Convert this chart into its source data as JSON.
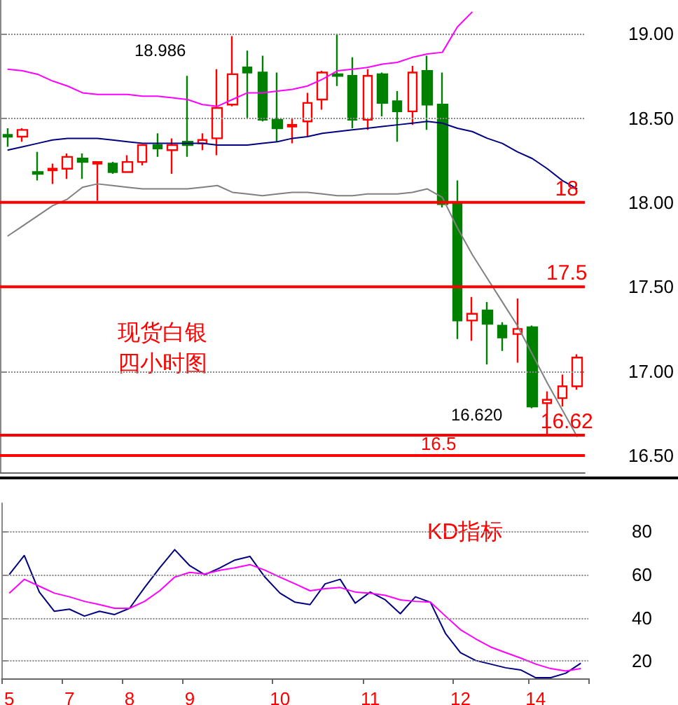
{
  "chart_data": [
    {
      "type": "candlestick",
      "categories": [
        "5",
        null,
        null,
        null,
        "7",
        null,
        null,
        null,
        "8",
        null,
        null,
        null,
        "9",
        null,
        null,
        null,
        null,
        null,
        "10",
        null,
        null,
        null,
        null,
        null,
        "11",
        null,
        null,
        null,
        null,
        null,
        "12",
        null,
        null,
        null,
        null,
        "14",
        null,
        null,
        null
      ],
      "ohlc": [
        [
          18.4,
          18.44,
          18.33,
          18.39
        ],
        [
          18.39,
          18.44,
          18.36,
          18.43
        ],
        [
          18.18,
          18.3,
          18.13,
          18.17
        ],
        [
          18.19,
          18.23,
          18.11,
          18.2
        ],
        [
          18.2,
          18.29,
          18.14,
          18.27
        ],
        [
          18.26,
          18.29,
          18.14,
          18.24
        ],
        [
          18.23,
          18.24,
          18.01,
          18.24
        ],
        [
          18.23,
          18.24,
          18.17,
          18.18
        ],
        [
          18.18,
          18.28,
          18.18,
          18.24
        ],
        [
          18.24,
          18.34,
          18.22,
          18.34
        ],
        [
          18.34,
          18.41,
          18.27,
          18.32
        ],
        [
          18.31,
          18.38,
          18.17,
          18.34
        ],
        [
          18.36,
          18.75,
          18.27,
          18.34
        ],
        [
          18.35,
          18.41,
          18.31,
          18.37
        ],
        [
          18.38,
          18.79,
          18.28,
          18.56
        ],
        [
          18.58,
          18.986,
          18.57,
          18.76
        ],
        [
          18.8,
          18.9,
          18.5,
          18.77
        ],
        [
          18.77,
          18.87,
          18.48,
          18.49
        ],
        [
          18.49,
          18.77,
          18.36,
          18.44
        ],
        [
          18.45,
          18.5,
          18.35,
          18.46
        ],
        [
          18.48,
          18.65,
          18.39,
          18.59
        ],
        [
          18.61,
          18.78,
          18.55,
          18.77
        ],
        [
          18.76,
          19.0,
          18.69,
          18.75
        ],
        [
          18.75,
          18.86,
          18.44,
          18.49
        ],
        [
          18.49,
          18.79,
          18.43,
          18.75
        ],
        [
          18.76,
          18.77,
          18.51,
          18.59
        ],
        [
          18.6,
          18.66,
          18.36,
          18.54
        ],
        [
          18.54,
          18.81,
          18.46,
          18.77
        ],
        [
          18.78,
          18.87,
          18.43,
          18.58
        ],
        [
          18.58,
          18.77,
          17.97,
          17.99
        ],
        [
          17.99,
          18.13,
          17.19,
          17.3
        ],
        [
          17.3,
          17.44,
          17.18,
          17.34
        ],
        [
          17.36,
          17.41,
          17.04,
          17.28
        ],
        [
          17.27,
          17.29,
          17.12,
          17.2
        ],
        [
          17.22,
          17.43,
          17.05,
          17.25
        ],
        [
          17.26,
          17.27,
          16.78,
          16.79
        ],
        [
          16.81,
          16.88,
          16.62,
          16.83
        ],
        [
          16.84,
          16.98,
          16.79,
          16.91
        ],
        [
          16.91,
          17.1,
          16.89,
          17.08
        ]
      ],
      "colors": [
        "#008000",
        "#ff0000",
        "#008000",
        "#ff0000",
        "#ff0000",
        "#008000",
        "#ff0000",
        "#008000",
        "#ff0000",
        "#ff0000",
        "#008000",
        "#ff0000",
        "#008000",
        "#ff0000",
        "#ff0000",
        "#ff0000",
        "#008000",
        "#008000",
        "#008000",
        "#ff0000",
        "#ff0000",
        "#ff0000",
        "#008000",
        "#008000",
        "#ff0000",
        "#008000",
        "#008000",
        "#ff0000",
        "#008000",
        "#008000",
        "#008000",
        "#ff0000",
        "#008000",
        "#008000",
        "#ff0000",
        "#008000",
        "#ff0000",
        "#ff0000",
        "#ff0000"
      ],
      "series": [
        {
          "type": "line",
          "color": "#ff00ff",
          "values": [
            18.79,
            18.78,
            18.76,
            18.72,
            18.69,
            18.65,
            18.64,
            18.64,
            18.64,
            18.63,
            18.63,
            18.62,
            18.61,
            18.58,
            18.57,
            18.61,
            18.65,
            18.65,
            18.66,
            18.67,
            18.69,
            18.73,
            18.78,
            18.79,
            18.8,
            18.82,
            18.83,
            18.86,
            18.88,
            18.89,
            19.04,
            19.13,
            null,
            null,
            null,
            null,
            null,
            null,
            null
          ]
        },
        {
          "type": "line",
          "color": "#000080",
          "values": [
            18.31,
            18.33,
            18.35,
            18.37,
            18.38,
            18.38,
            18.38,
            18.37,
            18.36,
            18.35,
            18.35,
            18.35,
            18.35,
            18.35,
            18.34,
            18.34,
            18.34,
            18.35,
            18.36,
            18.38,
            18.39,
            18.41,
            18.42,
            18.43,
            18.44,
            18.45,
            18.46,
            18.47,
            18.48,
            18.47,
            18.44,
            18.42,
            18.38,
            18.35,
            18.3,
            18.26,
            18.2,
            18.13,
            18.08
          ]
        },
        {
          "type": "line",
          "color": "#808080",
          "values": [
            17.8,
            17.86,
            17.92,
            17.98,
            18.02,
            18.09,
            18.11,
            18.1,
            18.09,
            18.08,
            18.08,
            18.08,
            18.08,
            18.09,
            18.1,
            18.06,
            18.05,
            18.04,
            18.05,
            18.06,
            18.06,
            18.05,
            18.04,
            18.04,
            18.05,
            18.05,
            18.05,
            18.06,
            18.08,
            18.03,
            17.85,
            17.69,
            17.55,
            17.41,
            17.27,
            17.1,
            16.93,
            16.77,
            16.61
          ]
        }
      ],
      "ylim": [
        16.4,
        19.2
      ],
      "yticks": [
        {
          "value": 16.5,
          "label": "16.50"
        },
        {
          "value": 17,
          "label": "17.00"
        },
        {
          "value": 17.5,
          "label": "17.50"
        },
        {
          "value": 18,
          "label": "18.00"
        },
        {
          "value": 18.5,
          "label": "18.50"
        },
        {
          "value": 19,
          "label": "19.00"
        }
      ],
      "ref_lines": [
        {
          "axis": "y",
          "value": 18,
          "label": "18",
          "color": "#ff0000"
        },
        {
          "axis": "y",
          "value": 17.5,
          "label": "17.5",
          "color": "#ff0000"
        },
        {
          "axis": "y",
          "value": 16.62,
          "label": "16.62",
          "color": "#ff0000"
        },
        {
          "axis": "y",
          "value": 16.5,
          "label": "16.5",
          "color": "#ff0000"
        }
      ],
      "annotations": [
        "18.986",
        "16.620",
        "现货白银",
        "四小时图"
      ],
      "grid": "y",
      "tick_labels": "y"
    },
    {
      "type": "line",
      "categories": [
        "5",
        null,
        null,
        null,
        "7",
        null,
        null,
        null,
        "8",
        null,
        null,
        null,
        "9",
        null,
        null,
        null,
        null,
        null,
        "10",
        null,
        null,
        null,
        null,
        null,
        "11",
        null,
        null,
        null,
        null,
        null,
        "12",
        null,
        null,
        null,
        null,
        "14",
        null,
        null,
        null
      ],
      "series": [
        {
          "color": "#000080",
          "values": [
            60,
            68.8,
            51.9,
            43.0,
            44.0,
            40.8,
            43.0,
            41.5,
            44.4,
            54.0,
            63.1,
            71.5,
            64.1,
            59.9,
            63.1,
            66.7,
            68.4,
            58.8,
            51.4,
            47.2,
            46.1,
            55.7,
            57.8,
            46.8,
            51.9,
            48.3,
            41.9,
            49.7,
            47.2,
            32.8,
            23.9,
            20.3,
            18.6,
            16.9,
            15.9,
            12.3,
            12.3,
            14.4,
            19.0
          ]
        },
        {
          "color": "#ff00ff",
          "values": [
            51.4,
            57.8,
            54.6,
            51.4,
            49.7,
            47.6,
            46.1,
            44.4,
            44.4,
            47.6,
            52.5,
            58.8,
            61.0,
            60.3,
            62.0,
            63.1,
            64.6,
            62.0,
            58.8,
            55.7,
            52.5,
            53.5,
            54.0,
            51.9,
            51.4,
            50.4,
            48.3,
            47.6,
            47.2,
            40.8,
            34.5,
            30.3,
            26.5,
            23.9,
            21.4,
            18.6,
            16.5,
            15.4,
            16.5
          ]
        }
      ],
      "ylim": [
        12,
        93
      ],
      "yticks": [
        20,
        40,
        60,
        80
      ],
      "annotations": [
        "KD指标"
      ],
      "grid": "y"
    }
  ]
}
